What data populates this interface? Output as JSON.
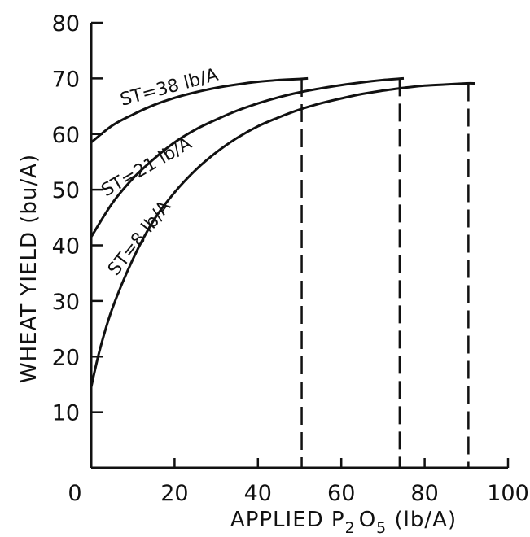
{
  "chart_data": {
    "type": "line",
    "title": "",
    "xlabel": "APPLIED P",
    "xlabel_sub": "2",
    "xlabel_mid": "O",
    "xlabel_sub2": "5",
    "xlabel_tail": " (lb/A)",
    "ylabel": "WHEAT YIELD (bu/A)",
    "xlim": [
      0,
      100
    ],
    "ylim": [
      0,
      80
    ],
    "x_ticks": [
      0,
      20,
      40,
      60,
      80,
      100
    ],
    "y_ticks": [
      10,
      20,
      30,
      40,
      50,
      60,
      70,
      80
    ],
    "grid": false,
    "series": [
      {
        "name": "ST=38 lb/A",
        "x": [
          0,
          5,
          10,
          15,
          20,
          25,
          30,
          35,
          40,
          45,
          50,
          52
        ],
        "y": [
          58.5,
          61.5,
          63.5,
          65.2,
          66.5,
          67.5,
          68.3,
          68.9,
          69.4,
          69.7,
          69.9,
          70.0
        ]
      },
      {
        "name": "ST=21 lb/A",
        "x": [
          0,
          5,
          10,
          15,
          20,
          25,
          30,
          35,
          40,
          45,
          50,
          55,
          60,
          65,
          70,
          75
        ],
        "y": [
          41.5,
          47.5,
          52.0,
          55.5,
          58.5,
          60.8,
          62.6,
          64.2,
          65.5,
          66.6,
          67.5,
          68.2,
          68.8,
          69.3,
          69.7,
          70.0
        ]
      },
      {
        "name": "ST=8 lb/A",
        "x": [
          0,
          2,
          5,
          10,
          15,
          20,
          25,
          30,
          35,
          40,
          45,
          50,
          55,
          60,
          65,
          70,
          75,
          80,
          85,
          90,
          92
        ],
        "y": [
          14.5,
          21,
          28.5,
          37.5,
          44.5,
          49.5,
          53.5,
          56.7,
          59.3,
          61.4,
          63.0,
          64.4,
          65.5,
          66.4,
          67.2,
          67.8,
          68.3,
          68.7,
          68.9,
          69.1,
          69.1
        ]
      }
    ],
    "dashed_drops": [
      {
        "x": 50.5,
        "y_top": 69.9
      },
      {
        "x": 74,
        "y_top": 70.0
      },
      {
        "x": 90.5,
        "y_top": 69.1
      }
    ]
  }
}
